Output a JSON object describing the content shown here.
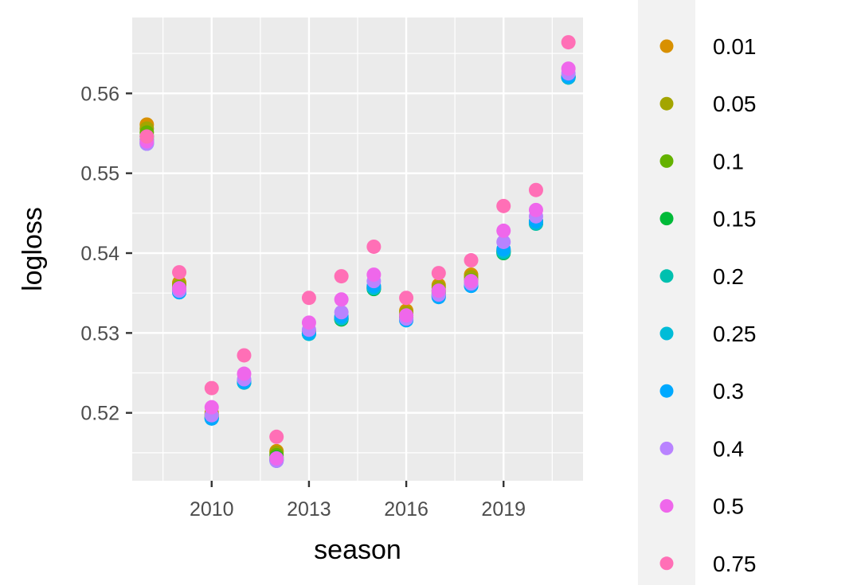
{
  "chart_data": {
    "type": "scatter",
    "title": "",
    "xlabel": "season",
    "ylabel": "logloss",
    "xlim": [
      2007.55,
      2021.45
    ],
    "ylim": [
      0.5115,
      0.5695
    ],
    "x_ticks": [
      2010,
      2013,
      2016,
      2019
    ],
    "x_tick_labels": [
      "2010",
      "2013",
      "2016",
      "2019"
    ],
    "y_ticks": [
      0.52,
      0.53,
      0.54,
      0.55,
      0.56
    ],
    "y_tick_labels": [
      "0.52",
      "0.53",
      "0.54",
      "0.55",
      "0.56"
    ],
    "grid": true,
    "legend_position": "right",
    "x": [
      2008,
      2009,
      2010,
      2011,
      2012,
      2013,
      2014,
      2015,
      2016,
      2017,
      2018,
      2019,
      2020,
      2021
    ],
    "series": [
      {
        "name": "0.01",
        "color": "#D89000",
        "values": [
          0.5561,
          0.5363,
          0.52,
          0.524,
          0.5152,
          0.5302,
          0.5319,
          0.5358,
          0.5328,
          0.536,
          0.5373,
          0.5403,
          0.544,
          0.5622
        ]
      },
      {
        "name": "0.05",
        "color": "#A3A500",
        "values": [
          0.5556,
          0.536,
          0.5198,
          0.5239,
          0.515,
          0.5301,
          0.5318,
          0.5357,
          0.5325,
          0.5357,
          0.537,
          0.5402,
          0.5439,
          0.5621
        ]
      },
      {
        "name": "0.1",
        "color": "#64B200",
        "values": [
          0.5551,
          0.5357,
          0.5196,
          0.5238,
          0.5147,
          0.53,
          0.5317,
          0.5356,
          0.5322,
          0.5353,
          0.5366,
          0.5401,
          0.5438,
          0.562
        ]
      },
      {
        "name": "0.15",
        "color": "#00BA38",
        "values": [
          0.5546,
          0.5354,
          0.5194,
          0.5238,
          0.5144,
          0.5299,
          0.5317,
          0.5355,
          0.5319,
          0.535,
          0.5362,
          0.54,
          0.5437,
          0.562
        ]
      },
      {
        "name": "0.2",
        "color": "#00C0AF",
        "values": [
          0.5542,
          0.5352,
          0.5193,
          0.5238,
          0.5142,
          0.5299,
          0.5318,
          0.5356,
          0.5317,
          0.5347,
          0.536,
          0.5401,
          0.5437,
          0.562
        ]
      },
      {
        "name": "0.25",
        "color": "#00BCD8",
        "values": [
          0.5539,
          0.5351,
          0.5193,
          0.5238,
          0.5141,
          0.5299,
          0.5319,
          0.5357,
          0.5316,
          0.5346,
          0.5359,
          0.5403,
          0.5438,
          0.562
        ]
      },
      {
        "name": "0.3",
        "color": "#00A9FF",
        "values": [
          0.5537,
          0.5351,
          0.5193,
          0.5239,
          0.514,
          0.53,
          0.5321,
          0.5359,
          0.5316,
          0.5345,
          0.5359,
          0.5405,
          0.544,
          0.5621
        ]
      },
      {
        "name": "0.4",
        "color": "#B983FF",
        "values": [
          0.5537,
          0.5353,
          0.5197,
          0.5242,
          0.514,
          0.5304,
          0.5326,
          0.5365,
          0.5318,
          0.5348,
          0.5362,
          0.5414,
          0.5446,
          0.5625
        ]
      },
      {
        "name": "0.5",
        "color": "#EF67EB",
        "values": [
          0.554,
          0.5356,
          0.5207,
          0.5249,
          0.5143,
          0.5313,
          0.5342,
          0.5373,
          0.5322,
          0.5353,
          0.5365,
          0.5428,
          0.5454,
          0.5631
        ]
      },
      {
        "name": "0.75",
        "color": "#FF6FB6",
        "values": [
          0.5546,
          0.5376,
          0.5231,
          0.5272,
          0.517,
          0.5344,
          0.5371,
          0.5408,
          0.5344,
          0.5375,
          0.5391,
          0.5459,
          0.5479,
          0.5664
        ]
      }
    ]
  }
}
